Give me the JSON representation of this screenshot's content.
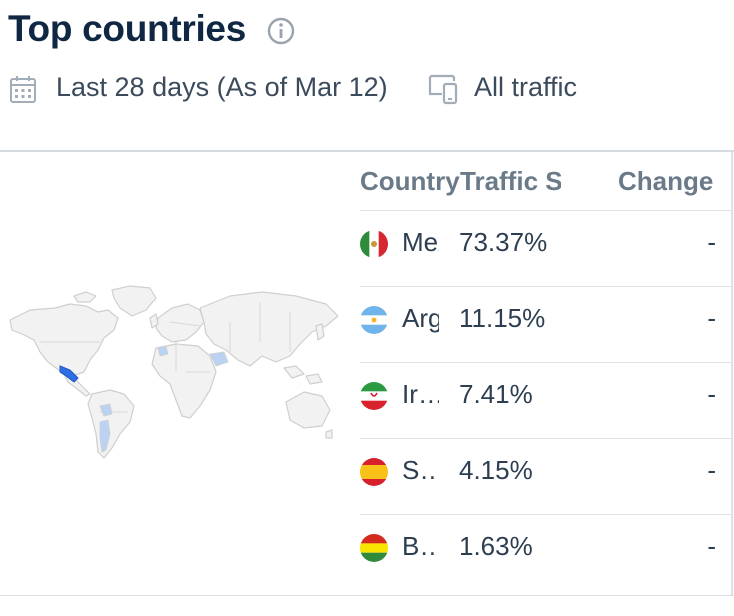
{
  "header": {
    "title": "Top countries",
    "info_icon": "info-circle-icon"
  },
  "meta": {
    "period": "Last 28 days (As of Mar 12)",
    "traffic_type": "All traffic",
    "calendar_icon": "calendar-icon",
    "device_icon": "devices-icon"
  },
  "table": {
    "headers": {
      "country": "Country",
      "share": "Traffic Share",
      "change": "Change"
    },
    "rows": [
      {
        "country": "Mexico",
        "share": "73.37%",
        "change": "-"
      },
      {
        "country": "Argentina",
        "share": "11.15%",
        "change": "-"
      },
      {
        "country": "Iran",
        "share": "7.41%",
        "change": "-"
      },
      {
        "country": "Spain",
        "share": "4.15%",
        "change": "-"
      },
      {
        "country": "Bolivia",
        "share": "1.63%",
        "change": "-"
      }
    ]
  },
  "map": {
    "base_color": "#f2f2f2",
    "border_color": "#cfcfcf",
    "highlight_strong": "#2f6fe4",
    "highlight_light": "#bcd2f3"
  }
}
